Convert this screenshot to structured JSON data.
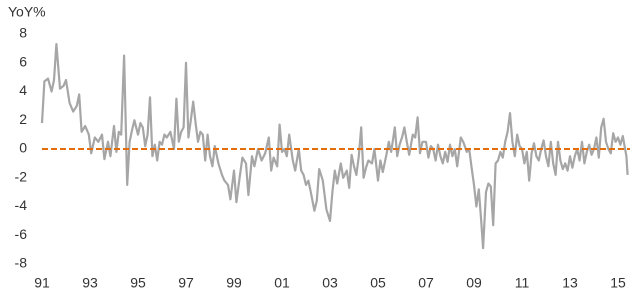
{
  "chart_data": {
    "type": "line",
    "y_label": "YoY%",
    "x": [
      1991.0,
      1991.1,
      1991.25,
      1991.4,
      1991.5,
      1991.6,
      1991.75,
      1991.9,
      1992.0,
      1992.15,
      1992.3,
      1992.45,
      1992.55,
      1992.65,
      1992.8,
      1992.95,
      1993.05,
      1993.2,
      1993.35,
      1993.5,
      1993.6,
      1993.75,
      1993.85,
      1994.0,
      1994.1,
      1994.2,
      1994.3,
      1994.42,
      1994.55,
      1994.65,
      1994.75,
      1994.85,
      1995.0,
      1995.1,
      1995.2,
      1995.3,
      1995.4,
      1995.5,
      1995.6,
      1995.7,
      1995.8,
      1995.9,
      1996.0,
      1996.1,
      1996.2,
      1996.35,
      1996.5,
      1996.6,
      1996.7,
      1996.8,
      1996.9,
      1997.0,
      1997.1,
      1997.2,
      1997.3,
      1997.4,
      1997.5,
      1997.6,
      1997.7,
      1997.8,
      1997.9,
      1998.0,
      1998.1,
      1998.2,
      1998.35,
      1998.5,
      1998.6,
      1998.75,
      1998.85,
      1999.0,
      1999.1,
      1999.25,
      1999.35,
      1999.5,
      1999.6,
      1999.75,
      1999.85,
      2000.0,
      2000.15,
      2000.3,
      2000.45,
      2000.55,
      2000.65,
      2000.8,
      2000.9,
      2001.0,
      2001.1,
      2001.2,
      2001.3,
      2001.45,
      2001.55,
      2001.7,
      2001.8,
      2001.9,
      2002.0,
      2002.1,
      2002.2,
      2002.35,
      2002.45,
      2002.55,
      2002.7,
      2002.85,
      2003.0,
      2003.1,
      2003.2,
      2003.3,
      2003.45,
      2003.55,
      2003.7,
      2003.8,
      2003.9,
      2004.0,
      2004.1,
      2004.2,
      2004.3,
      2004.4,
      2004.5,
      2004.6,
      2004.75,
      2004.85,
      2005.0,
      2005.1,
      2005.2,
      2005.35,
      2005.45,
      2005.55,
      2005.7,
      2005.8,
      2005.9,
      2006.0,
      2006.1,
      2006.2,
      2006.3,
      2006.45,
      2006.55,
      2006.65,
      2006.75,
      2006.85,
      2007.0,
      2007.1,
      2007.2,
      2007.3,
      2007.4,
      2007.5,
      2007.6,
      2007.7,
      2007.8,
      2007.9,
      2008.0,
      2008.1,
      2008.2,
      2008.3,
      2008.45,
      2008.55,
      2008.7,
      2008.8,
      2008.9,
      2009.0,
      2009.1,
      2009.2,
      2009.3,
      2009.38,
      2009.5,
      2009.6,
      2009.7,
      2009.8,
      2009.9,
      2010.0,
      2010.1,
      2010.2,
      2010.3,
      2010.4,
      2010.5,
      2010.6,
      2010.7,
      2010.8,
      2010.9,
      2011.0,
      2011.1,
      2011.2,
      2011.3,
      2011.4,
      2011.5,
      2011.6,
      2011.7,
      2011.8,
      2011.9,
      2012.0,
      2012.1,
      2012.2,
      2012.3,
      2012.4,
      2012.5,
      2012.6,
      2012.7,
      2012.8,
      2012.9,
      2013.0,
      2013.1,
      2013.2,
      2013.3,
      2013.4,
      2013.5,
      2013.6,
      2013.7,
      2013.8,
      2013.9,
      2014.0,
      2014.1,
      2014.2,
      2014.3,
      2014.4,
      2014.5,
      2014.6,
      2014.7,
      2014.8,
      2014.9,
      2015.0,
      2015.1,
      2015.2,
      2015.35,
      2015.4
    ],
    "series": [
      {
        "color": "#a6a6a6",
        "values": [
          1.8,
          4.7,
          4.9,
          4.0,
          4.8,
          7.3,
          4.2,
          4.4,
          4.8,
          3.2,
          2.6,
          3.0,
          3.8,
          1.2,
          1.6,
          1.0,
          -0.3,
          0.8,
          0.5,
          1.0,
          -0.7,
          0.5,
          -0.5,
          1.6,
          -0.2,
          1.2,
          1.0,
          6.5,
          -2.5,
          0.5,
          1.3,
          2.0,
          1.0,
          1.8,
          1.5,
          0.2,
          1.0,
          3.6,
          -0.5,
          0.3,
          -0.8,
          0.5,
          0.3,
          1.0,
          0.8,
          1.2,
          0.0,
          3.5,
          0.5,
          1.2,
          1.5,
          6.0,
          0.8,
          2.0,
          3.3,
          1.8,
          0.5,
          1.2,
          1.0,
          -0.8,
          1.0,
          -0.5,
          -1.2,
          0.2,
          -1.0,
          -1.8,
          -2.2,
          -2.5,
          -3.5,
          -1.5,
          -3.7,
          -1.8,
          -0.6,
          -1.0,
          -3.2,
          -0.5,
          -1.2,
          0.0,
          -0.8,
          -0.3,
          0.8,
          -1.5,
          -0.6,
          -1.2,
          1.7,
          -0.2,
          0.0,
          -0.5,
          1.0,
          -0.8,
          -1.5,
          0.0,
          -1.5,
          -1.8,
          -2.5,
          -2.2,
          -3.0,
          -4.3,
          -3.6,
          -1.4,
          -2.2,
          -4.2,
          -5.0,
          -3.0,
          -1.5,
          -2.4,
          -1.0,
          -2.0,
          -1.5,
          -2.7,
          -0.4,
          -1.2,
          -1.8,
          -0.5,
          1.5,
          -2.0,
          -1.3,
          -0.8,
          -1.0,
          0.0,
          -2.2,
          -0.8,
          -1.6,
          -0.4,
          0.5,
          -0.2,
          1.5,
          -0.5,
          0.3,
          0.8,
          1.5,
          0.5,
          -0.4,
          1.0,
          0.8,
          2.2,
          -0.3,
          0.5,
          0.5,
          -0.6,
          0.2,
          0.0,
          -0.8,
          0.3,
          -0.5,
          -1.0,
          -0.2,
          -0.9,
          0.3,
          -0.5,
          0.0,
          -1.2,
          0.8,
          0.5,
          -0.2,
          0.0,
          -1.3,
          -2.5,
          -4.0,
          -2.8,
          -5.0,
          -6.9,
          -3.0,
          -2.4,
          -2.6,
          -5.3,
          -1.0,
          -0.8,
          -0.2,
          -0.6,
          0.5,
          1.2,
          2.5,
          0.5,
          -0.5,
          1.0,
          0.2,
          0.0,
          -1.0,
          -0.2,
          -2.2,
          -0.3,
          0.4,
          -0.5,
          -0.8,
          0.0,
          0.6,
          -0.5,
          -1.2,
          0.5,
          -1.0,
          -1.8,
          0.5,
          -0.8,
          -1.4,
          -1.0,
          -1.5,
          -0.5,
          -1.3,
          -0.5,
          0.0,
          -0.8,
          0.5,
          -1.0,
          -0.2,
          0.3,
          -0.4,
          0.0,
          0.8,
          -0.6,
          1.5,
          2.1,
          0.5,
          0.0,
          -0.3,
          1.1,
          0.5,
          0.8,
          0.3,
          0.9,
          -0.5,
          -1.8
        ]
      }
    ],
    "reference_line": {
      "value": 0,
      "color": "#e46c0a"
    },
    "xlim": [
      1991,
      2015.5
    ],
    "xticks": [
      {
        "value": 1991,
        "label": "91"
      },
      {
        "value": 1993,
        "label": "93"
      },
      {
        "value": 1995,
        "label": "95"
      },
      {
        "value": 1997,
        "label": "97"
      },
      {
        "value": 1999,
        "label": "99"
      },
      {
        "value": 2001,
        "label": "01"
      },
      {
        "value": 2003,
        "label": "03"
      },
      {
        "value": 2005,
        "label": "05"
      },
      {
        "value": 2007,
        "label": "07"
      },
      {
        "value": 2009,
        "label": "09"
      },
      {
        "value": 2011,
        "label": "11"
      },
      {
        "value": 2013,
        "label": "13"
      },
      {
        "value": 2015,
        "label": "15"
      }
    ],
    "ylim": [
      -8,
      8
    ],
    "yticks": [
      -8,
      -6,
      -4,
      -2,
      0,
      2,
      4,
      6,
      8
    ]
  }
}
